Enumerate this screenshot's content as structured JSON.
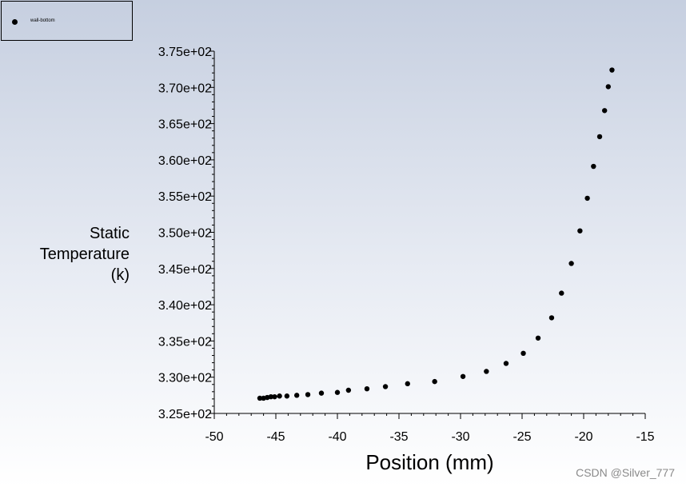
{
  "chart_data": {
    "type": "scatter",
    "title": "",
    "xlabel": "Position (mm)",
    "ylabel": [
      "Static",
      "Temperature",
      "(k)"
    ],
    "xlim": [
      -50,
      -15
    ],
    "ylim": [
      325,
      375
    ],
    "x_ticks": [
      -50,
      -45,
      -40,
      -35,
      -30,
      -25,
      -20,
      -15
    ],
    "y_ticks": [
      325,
      330,
      335,
      340,
      345,
      350,
      355,
      360,
      365,
      370,
      375
    ],
    "y_tick_labels": [
      "3.25e+02",
      "3.30e+02",
      "3.35e+02",
      "3.40e+02",
      "3.45e+02",
      "3.50e+02",
      "3.55e+02",
      "3.60e+02",
      "3.65e+02",
      "3.70e+02",
      "3.75e+02"
    ],
    "legend_position": "top-left",
    "grid": false,
    "series": [
      {
        "name": "wall-bottom",
        "color": "#000000",
        "marker": "circle",
        "x": [
          -46.3,
          -46.0,
          -45.7,
          -45.4,
          -45.1,
          -44.7,
          -44.1,
          -43.3,
          -42.4,
          -41.3,
          -40.0,
          -39.1,
          -37.6,
          -36.1,
          -34.3,
          -32.1,
          -29.8,
          -27.9,
          -26.3,
          -24.9,
          -23.7,
          -22.6,
          -21.8,
          -21.0,
          -20.3,
          -19.7,
          -19.2,
          -18.7,
          -18.3,
          -18.0,
          -17.7
        ],
        "y": [
          327.1,
          327.1,
          327.2,
          327.3,
          327.3,
          327.4,
          327.4,
          327.5,
          327.6,
          327.8,
          327.9,
          328.2,
          328.4,
          328.7,
          329.1,
          329.4,
          330.1,
          330.8,
          331.9,
          333.3,
          335.4,
          338.2,
          341.6,
          345.7,
          350.2,
          354.7,
          359.1,
          363.2,
          366.8,
          370.1,
          372.4
        ]
      }
    ]
  },
  "watermark": "CSDN @Silver_777"
}
